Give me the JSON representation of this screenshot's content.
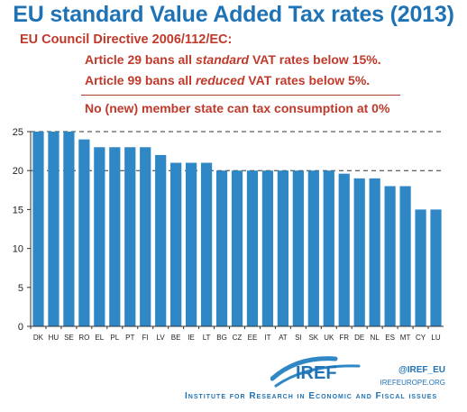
{
  "header": {
    "title": "EU standard Value Added Tax rates (2013)"
  },
  "notes": {
    "directive": "EU Council Directive 2006/112/EC:",
    "art29_pre": "Article 29 bans all ",
    "art29_em": "standard",
    "art29_post": " VAT rates below 15%.",
    "art99_pre": "Article 99 bans all ",
    "art99_em": "reduced",
    "art99_post": " VAT rates below 5%.",
    "conclusion": "No (new) member state can tax consumption at 0%"
  },
  "footer": {
    "logo_text": "IREF",
    "handle": "@IREF_EU",
    "site": "IREFEUROPE.ORG",
    "institute": "Institute for Research in Economic and Fiscal issues"
  },
  "colors": {
    "bar": "#2f87c6",
    "title": "#1f73b5",
    "notes": "#c0392b"
  },
  "chart_data": {
    "type": "bar",
    "categories": [
      "DK",
      "HU",
      "SE",
      "RO",
      "EL",
      "PL",
      "PT",
      "FI",
      "LV",
      "BE",
      "IE",
      "LT",
      "BG",
      "CZ",
      "EE",
      "IT",
      "AT",
      "SI",
      "SK",
      "UK",
      "FR",
      "DE",
      "NL",
      "ES",
      "MT",
      "CY",
      "LU"
    ],
    "values": [
      25,
      25,
      25,
      24,
      23,
      23,
      23,
      23,
      22,
      21,
      21,
      21,
      20,
      20,
      20,
      20,
      20,
      20,
      20,
      20,
      19.6,
      19,
      19,
      18,
      18,
      15,
      15
    ],
    "yticks": [
      0,
      5,
      10,
      15,
      20,
      25
    ],
    "ylim": [
      0,
      25
    ],
    "reference_lines": [
      20,
      25
    ],
    "grid": false
  }
}
